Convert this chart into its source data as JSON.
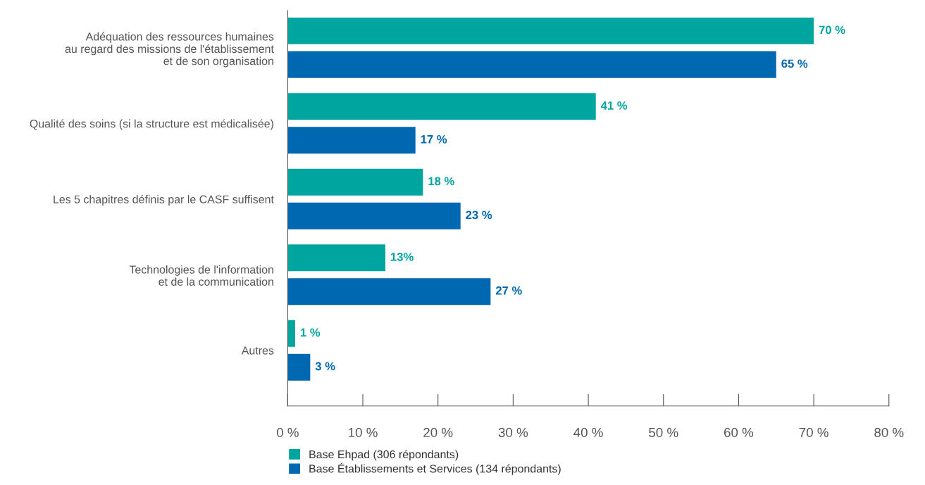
{
  "chart_data": {
    "type": "bar",
    "orientation": "horizontal",
    "categories": [
      "Adéquation des ressources humaines\nau regard des missions de l'établissement\net de son organisation",
      "Qualité des soins (si la structure est médicalisée)",
      "Les 5 chapitres définis par le CASF suffisent",
      "Technologies de l'information\net de la communication",
      "Autres"
    ],
    "series": [
      {
        "name": "Base Ehpad (306 répondants)",
        "color": "#00a5a0",
        "values": [
          70,
          41,
          18,
          13,
          1
        ],
        "value_labels": [
          "70 %",
          "41 %",
          "18 %",
          "13%",
          "1 %"
        ]
      },
      {
        "name": "Base Établissements et Services (134 répondants)",
        "color": "#0067b1",
        "values": [
          65,
          17,
          23,
          27,
          3
        ],
        "value_labels": [
          "65 %",
          "17 %",
          "23 %",
          "27 %",
          "3 %"
        ]
      }
    ],
    "xlim": [
      0,
      80
    ],
    "xticks": [
      {
        "value": 0,
        "label": "0 %"
      },
      {
        "value": 10,
        "label": "10 %"
      },
      {
        "value": 20,
        "label": "20 %"
      },
      {
        "value": 30,
        "label": "30 %"
      },
      {
        "value": 40,
        "label": "40 %"
      },
      {
        "value": 50,
        "label": "50 %"
      },
      {
        "value": 60,
        "label": "60 %"
      },
      {
        "value": 70,
        "label": "70 %"
      },
      {
        "value": 80,
        "label": "80 %"
      }
    ],
    "grid": false,
    "legend": "bottom left"
  }
}
